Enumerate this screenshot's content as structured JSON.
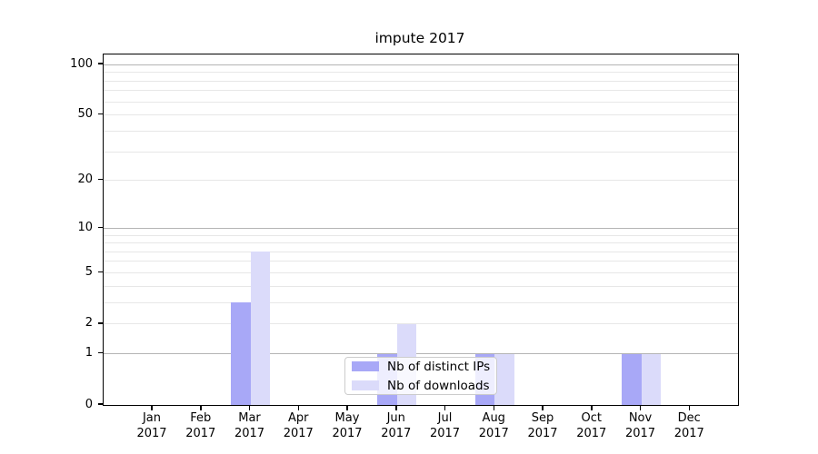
{
  "title": "impute 2017",
  "chart_data": {
    "type": "bar",
    "title": "impute 2017",
    "months": [
      "Jan",
      "Feb",
      "Mar",
      "Apr",
      "May",
      "Jun",
      "Jul",
      "Aug",
      "Sep",
      "Oct",
      "Nov",
      "Dec"
    ],
    "year": "2017",
    "categories": [
      "Jan 2017",
      "Feb 2017",
      "Mar 2017",
      "Apr 2017",
      "May 2017",
      "Jun 2017",
      "Jul 2017",
      "Aug 2017",
      "Sep 2017",
      "Oct 2017",
      "Nov 2017",
      "Dec 2017"
    ],
    "series": [
      {
        "name": "Nb of distinct IPs",
        "color": "#a8a8f7",
        "values": [
          0,
          0,
          3,
          0,
          0,
          1,
          0,
          1,
          0,
          0,
          1,
          0
        ]
      },
      {
        "name": "Nb of downloads",
        "color": "#dbdbfa",
        "values": [
          0,
          0,
          7,
          0,
          0,
          2,
          0,
          1,
          0,
          0,
          1,
          0
        ]
      }
    ],
    "xlabel": "",
    "ylabel": "",
    "yscale": "log1p",
    "ylim": [
      0,
      115
    ],
    "yticks": [
      0,
      1,
      2,
      5,
      10,
      20,
      50,
      100
    ],
    "grid": {
      "on": true,
      "major_values": [
        1,
        10,
        100
      ],
      "minor_values": [
        2,
        3,
        4,
        5,
        6,
        7,
        8,
        9,
        20,
        30,
        40,
        50,
        60,
        70,
        80,
        90
      ],
      "major_color": "#b4b4b4",
      "minor_color": "#e7e7e7"
    },
    "legend": {
      "position": "lower-center",
      "frame": true
    },
    "colors": {
      "spine": "#000000",
      "background": "#ffffff",
      "text": "#000000"
    }
  }
}
